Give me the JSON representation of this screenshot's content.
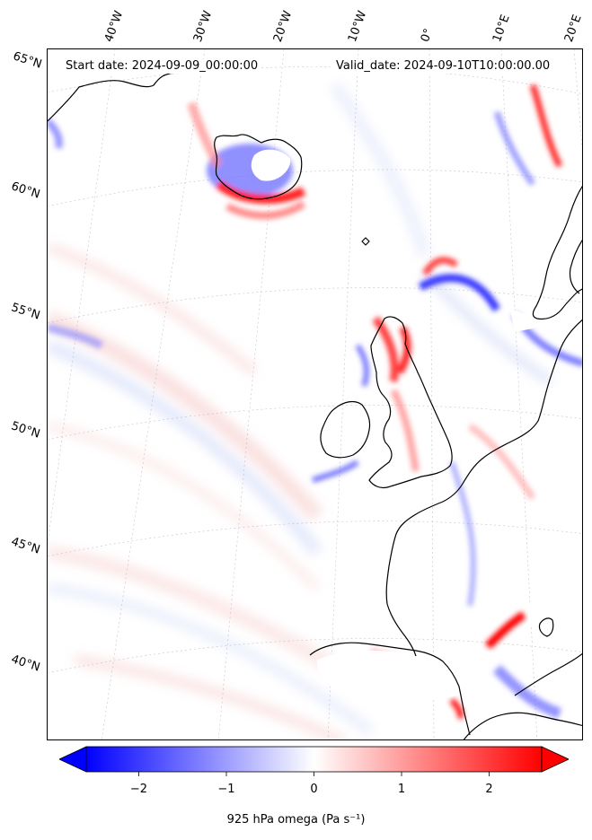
{
  "header": {
    "start_date": "Start date: 2024-09-09_00:00:00",
    "valid_date": "Valid_date: 2024-09-10T10:00:00.00"
  },
  "map": {
    "variable": "925 hPa omega",
    "units": "Pa s⁻¹",
    "longitude_labels": [
      "40°W",
      "30°W",
      "20°W",
      "10°W",
      "0°",
      "10°E",
      "20°E"
    ],
    "latitude_labels": [
      "65°N",
      "60°N",
      "55°N",
      "50°N",
      "45°N",
      "40°N"
    ],
    "region": "North Atlantic and Western Europe",
    "features": [
      "Iceland",
      "British Isles",
      "Norway",
      "Iberian Peninsula",
      "North Africa coast"
    ],
    "colormap": {
      "low": "#0000ff",
      "mid": "#ffffff",
      "high": "#ff0000"
    },
    "data_masked_color": "#ffffff"
  },
  "colorbar": {
    "min": -2.6,
    "max": 2.6,
    "ticks": [
      "−2",
      "−1",
      "0",
      "1",
      "2"
    ],
    "tick_values": [
      -2,
      -1,
      0,
      1,
      2
    ],
    "label": "925 hPa omega (Pa s⁻¹)",
    "extend": "both"
  }
}
